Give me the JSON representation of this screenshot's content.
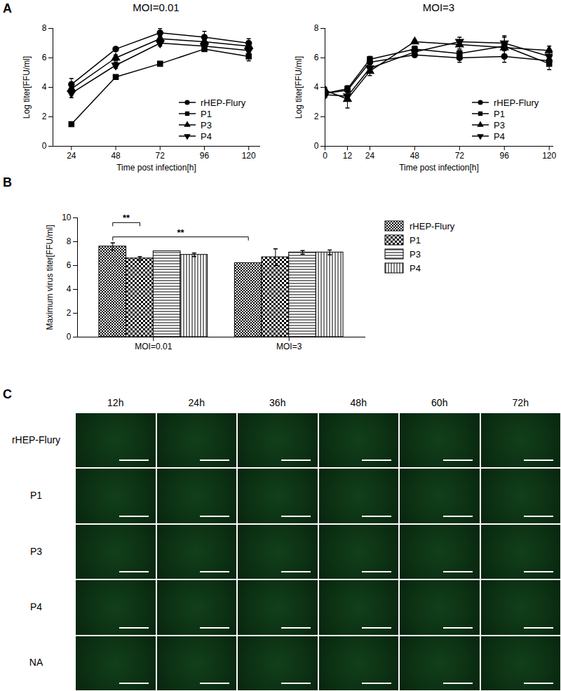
{
  "panel_labels": [
    "A",
    "B",
    "C"
  ],
  "chart_data": [
    {
      "type": "line",
      "title": "MOI=0.01",
      "xlabel": "Time post infection[h]",
      "ylabel": "Log titer[FFU/ml]",
      "xlim": [
        14,
        126
      ],
      "xticks": [
        24,
        48,
        72,
        96,
        120
      ],
      "ylim": [
        0,
        8
      ],
      "yticks": [
        0,
        2,
        4,
        6,
        8
      ],
      "grid": false,
      "legend": "bottom-right",
      "x": [
        24,
        48,
        72,
        96,
        120
      ],
      "series": [
        {
          "name": "rHEP-Flury",
          "color": "#000000",
          "marker": "circle",
          "values": [
            4.2,
            6.6,
            7.7,
            7.4,
            7.0
          ],
          "error": [
            0.4,
            0.1,
            0.3,
            0.4,
            0.3
          ]
        },
        {
          "name": "P1",
          "color": "#000000",
          "marker": "square",
          "values": [
            1.5,
            4.7,
            5.6,
            6.6,
            6.1
          ],
          "error": [
            0.1,
            0.1,
            0.1,
            0.1,
            0.3
          ]
        },
        {
          "name": "P3",
          "color": "#000000",
          "marker": "triangle",
          "values": [
            3.9,
            6.0,
            7.3,
            7.1,
            6.8
          ],
          "error": [
            0.3,
            0.2,
            0.2,
            0.2,
            0.2
          ]
        },
        {
          "name": "P4",
          "color": "#000000",
          "marker": "triangle-down",
          "values": [
            3.6,
            5.5,
            7.0,
            6.8,
            6.5
          ],
          "error": [
            0.3,
            0.2,
            0.2,
            0.3,
            0.2
          ]
        }
      ]
    },
    {
      "type": "line",
      "title": "MOI=3",
      "xlabel": "Time post infection[h]",
      "ylabel": "Log titer[FFU/ml]",
      "xlim": [
        0,
        122
      ],
      "xticks": [
        0,
        12,
        24,
        48,
        72,
        96,
        120
      ],
      "ylim": [
        0,
        8
      ],
      "yticks": [
        0,
        2,
        4,
        6,
        8
      ],
      "grid": false,
      "legend": "bottom-right",
      "x": [
        0,
        12,
        24,
        48,
        72,
        96,
        120
      ],
      "series": [
        {
          "name": "rHEP-Flury",
          "color": "#000000",
          "marker": "circle",
          "values": [
            3.6,
            3.8,
            5.7,
            6.2,
            6.0,
            6.1,
            5.8
          ],
          "error": [
            0.3,
            0.3,
            0.3,
            0.1,
            0.3,
            0.4,
            0.3
          ]
        },
        {
          "name": "P1",
          "color": "#000000",
          "marker": "square",
          "values": [
            3.6,
            3.9,
            5.9,
            6.6,
            6.3,
            6.8,
            5.6
          ],
          "error": [
            0.2,
            0.2,
            0.2,
            0.2,
            0.2,
            0.2,
            0.4
          ]
        },
        {
          "name": "P3",
          "color": "#000000",
          "marker": "triangle",
          "values": [
            3.8,
            3.2,
            5.1,
            7.1,
            6.9,
            6.7,
            6.5
          ],
          "error": [
            0.2,
            0.6,
            0.3,
            0.1,
            0.3,
            0.7,
            0.3
          ]
        },
        {
          "name": "P4",
          "color": "#000000",
          "marker": "triangle-down",
          "values": [
            3.5,
            3.4,
            5.3,
            6.4,
            7.1,
            7.0,
            6.1
          ],
          "error": [
            0.2,
            0.3,
            0.3,
            0.1,
            0.3,
            0.5,
            0.3
          ]
        }
      ]
    },
    {
      "type": "bar",
      "ylabel": "Maximum virus titer[FFU/ml]",
      "categories": [
        "MOI=0.01",
        "MOI=3"
      ],
      "ylim": [
        0,
        10
      ],
      "yticks": [
        0,
        2,
        4,
        6,
        8,
        10
      ],
      "grid": false,
      "legend": "right",
      "series": [
        {
          "name": "rHEP-Flury",
          "color": "#000000",
          "values": [
            7.6,
            6.2
          ],
          "error": [
            0.3,
            0
          ]
        },
        {
          "name": "P1",
          "color": "#000000",
          "values": [
            6.6,
            6.7
          ],
          "error": [
            0.15,
            0.7
          ]
        },
        {
          "name": "P3",
          "color": "#000000",
          "values": [
            7.2,
            7.1
          ],
          "error": [
            0,
            0.15
          ]
        },
        {
          "name": "P4",
          "color": "#000000",
          "values": [
            6.9,
            7.1
          ],
          "error": [
            0.15,
            0.2
          ]
        }
      ],
      "annotations": [
        {
          "text": "**",
          "y": 9.6,
          "from": {
            "category": "MOI=0.01",
            "series": "rHEP-Flury"
          },
          "to": {
            "category": "MOI=0.01",
            "series": "P1"
          }
        },
        {
          "text": "**",
          "y": 8.4,
          "from": {
            "category": "MOI=0.01",
            "series": "rHEP-Flury"
          },
          "to": {
            "category": "MOI=3",
            "series": "rHEP-Flury"
          }
        }
      ]
    }
  ],
  "image_grid": {
    "columns": [
      "12h",
      "24h",
      "36h",
      "48h",
      "60h",
      "72h"
    ],
    "rows": [
      "rHEP-Flury",
      "P1",
      "P3",
      "P4",
      "NA"
    ]
  }
}
